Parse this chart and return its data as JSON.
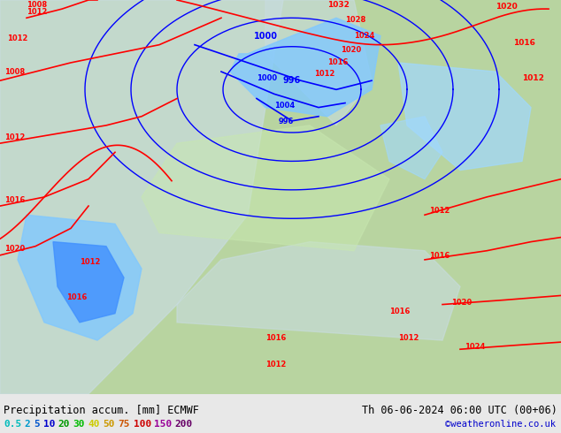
{
  "title_left": "Precipitation accum. [mm] ECMWF",
  "title_right": "Th 06-06-2024 06:00 UTC (00+06)",
  "credit": "©weatheronline.co.uk",
  "legend_values": [
    "0.5",
    "2",
    "5",
    "10",
    "20",
    "30",
    "40",
    "50",
    "75",
    "100",
    "150",
    "200"
  ],
  "legend_colors": [
    "#00ffff",
    "#00d0ff",
    "#0090ff",
    "#0050ff",
    "#00c000",
    "#00e000",
    "#ffff00",
    "#ffc000",
    "#ff6000",
    "#ff0000",
    "#c000c0",
    "#800080"
  ],
  "bg_color": "#e8e8e8",
  "map_bg": "#d4d4d4",
  "bottom_bar_color": "#f0f0f0",
  "text_color_left": "#000000",
  "text_color_right": "#000000",
  "credit_color": "#0000cc",
  "figwidth": 6.34,
  "figheight": 4.9,
  "dpi": 100
}
